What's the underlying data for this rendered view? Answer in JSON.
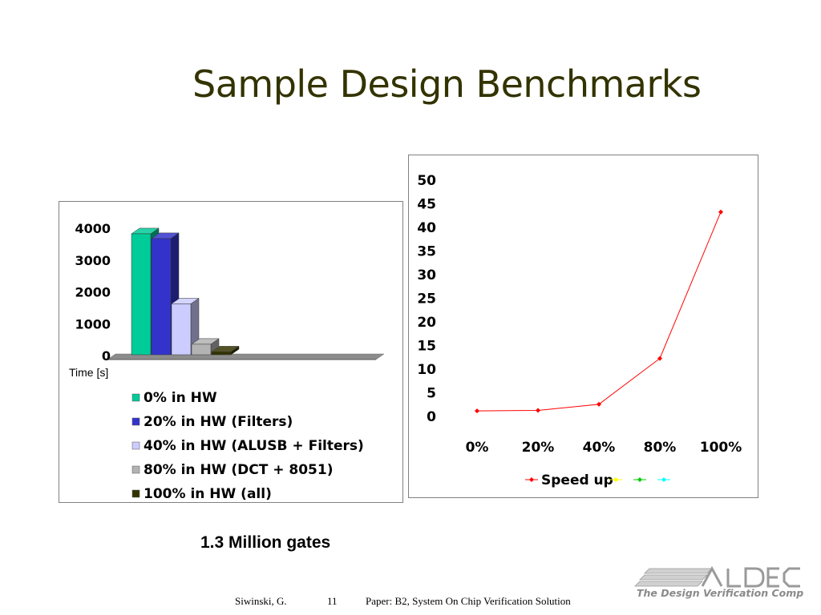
{
  "slide": {
    "title": "Sample Design Benchmarks",
    "caption": "1.3 Million gates",
    "footer": {
      "author": "Siwinski, G.",
      "page": "11",
      "paper": "Paper:  B2, System On Chip Verification Solution"
    },
    "logo": {
      "name": "ALDEC",
      "tagline": "The Design Verification Company"
    }
  },
  "chart_data": [
    {
      "type": "bar",
      "ylabel": "Time [s]",
      "ylim": [
        0,
        4000
      ],
      "yticks": [
        0,
        1000,
        2000,
        3000,
        4000
      ],
      "series": [
        {
          "name": "0% in HW",
          "values": [
            3800
          ],
          "color": "#00cc99"
        },
        {
          "name": "20% in HW (Filters)",
          "values": [
            3650
          ],
          "color": "#3333cc"
        },
        {
          "name": "40% in HW (ALUSB + Filters)",
          "values": [
            1600
          ],
          "color": "#ccccff"
        },
        {
          "name": "80% in HW (DCT + 8051)",
          "values": [
            330
          ],
          "color": "#b3b3b3"
        },
        {
          "name": "100% in HW (all)",
          "values": [
            90
          ],
          "color": "#333300"
        }
      ],
      "legend_position": "bottom"
    },
    {
      "type": "line",
      "categories": [
        "0%",
        "20%",
        "40%",
        "80%",
        "100%"
      ],
      "ylim": [
        0,
        50
      ],
      "yticks": [
        0,
        5,
        10,
        15,
        20,
        25,
        30,
        35,
        40,
        45,
        50
      ],
      "series": [
        {
          "name": "Speed up",
          "values": [
            1,
            1.1,
            2.4,
            12.1,
            43.1
          ],
          "color": "#ff0000"
        }
      ],
      "extra_legend_markers": [
        "#ffff00",
        "#00cc00",
        "#00ffff"
      ],
      "legend_position": "bottom"
    }
  ]
}
